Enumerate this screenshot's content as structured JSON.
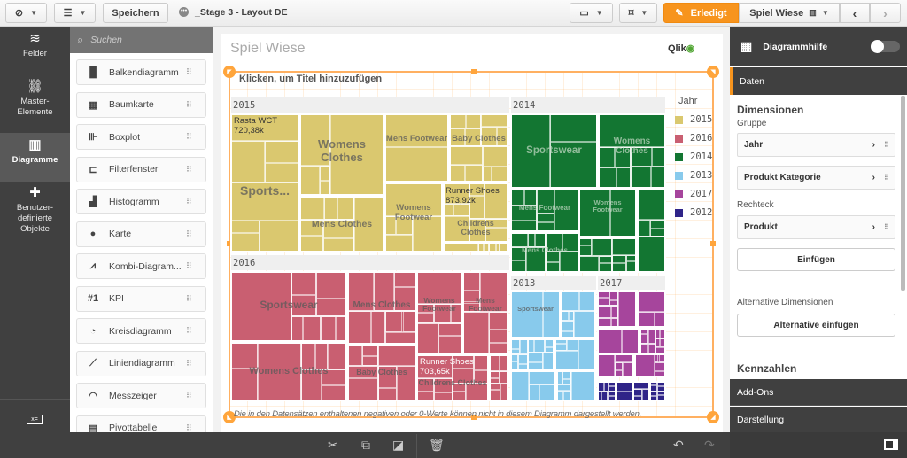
{
  "topbar": {
    "nav_icon": "compass-icon",
    "list_icon": "list-icon",
    "save_label": "Speichern",
    "app_title": "_Stage 3 - Layout DE",
    "present_icon": "presentation-icon",
    "bookmark_icon": "bookmark-icon",
    "done_label": "Erledigt",
    "sheet_label": "Spiel Wiese"
  },
  "leftnav": {
    "items": [
      {
        "label": "Felder",
        "icon": "database-icon"
      },
      {
        "label": "Master-\nElemente",
        "icon": "link-icon"
      },
      {
        "label": "Diagramme",
        "icon": "chart-icon",
        "selected": true
      },
      {
        "label": "Benutzer-\ndefinierte\nObjekte",
        "icon": "puzzle-icon"
      }
    ]
  },
  "chartlist": {
    "search_placeholder": "Suchen",
    "items": [
      {
        "label": "Balkendiagramm",
        "icon": "bar-chart-icon"
      },
      {
        "label": "Baumkarte",
        "icon": "treemap-icon"
      },
      {
        "label": "Boxplot",
        "icon": "boxplot-icon"
      },
      {
        "label": "Filterfenster",
        "icon": "filter-pane-icon"
      },
      {
        "label": "Histogramm",
        "icon": "histogram-icon"
      },
      {
        "label": "Karte",
        "icon": "globe-icon"
      },
      {
        "label": "Kombi-Diagram...",
        "icon": "combo-chart-icon"
      },
      {
        "label": "KPI",
        "icon": "kpi-icon"
      },
      {
        "label": "Kreisdiagramm",
        "icon": "pie-chart-icon"
      },
      {
        "label": "Liniendiagramm",
        "icon": "line-chart-icon"
      },
      {
        "label": "Messzeiger",
        "icon": "gauge-icon"
      },
      {
        "label": "Pivottabelle",
        "icon": "pivot-table-icon"
      }
    ]
  },
  "sheet": {
    "title": "Spiel Wiese",
    "logo": "Qlik",
    "chart_title_placeholder": "Klicken, um Titel hinzuzufügen",
    "footnote": "Die in den Datensätzen enthaltenen negativen oder 0-Werte können nicht in diesem Diagramm dargestellt werden."
  },
  "chart_data": {
    "type": "treemap",
    "legend_title": "Jahr",
    "legend_placement": "right",
    "legend": [
      {
        "label": "2015",
        "color": "#dac86f"
      },
      {
        "label": "2016",
        "color": "#c95f71"
      },
      {
        "label": "2014",
        "color": "#137632"
      },
      {
        "label": "2013",
        "color": "#88caec"
      },
      {
        "label": "2017",
        "color": "#a6459c"
      },
      {
        "label": "2012",
        "color": "#2f2488"
      }
    ],
    "groups": [
      {
        "year": "2015",
        "categories": [
          "Sports...",
          "Womens Clothes",
          "Mens Clothes",
          "Mens Footwear",
          "Baby Clothes",
          "Womens Footwear",
          "Childrens Clothes"
        ],
        "value_labels": [
          {
            "product": "Rasta WCT",
            "value": "720,38k"
          },
          {
            "product": "Runner Shoes",
            "value": "873,92k"
          }
        ]
      },
      {
        "year": "2014",
        "categories": [
          "Sportswear",
          "Womens Clothes",
          "Mens Footwear",
          "Womens Footwear",
          "Mens Clothes"
        ],
        "value_labels": []
      },
      {
        "year": "2016",
        "categories": [
          "Sportswear",
          "Womens Clothes",
          "Mens Clothes",
          "Baby Clothes",
          "Womens Footwear",
          "Mens Footwear",
          "Childrens Clothes"
        ],
        "value_labels": [
          {
            "product": "Runner Shoes",
            "value": "703,65k"
          }
        ]
      },
      {
        "year": "2013",
        "categories": [
          "Sportswear"
        ],
        "value_labels": []
      },
      {
        "year": "2017",
        "categories": [],
        "value_labels": []
      },
      {
        "year": "2012",
        "categories": [],
        "value_labels": []
      }
    ]
  },
  "rightpanel": {
    "header": "Diagrammhilfe",
    "toggle_on": false,
    "tab_data": "Daten",
    "dimensions_title": "Dimensionen",
    "group_label": "Gruppe",
    "group_fields": [
      "Jahr",
      "Produkt Kategorie"
    ],
    "rect_label": "Rechteck",
    "rect_fields": [
      "Produkt"
    ],
    "add_button": "Einfügen",
    "alt_dims_label": "Alternative Dimensionen",
    "alt_add_button": "Alternative einfügen",
    "measures_title": "Kennzahlen",
    "addons": "Add-Ons",
    "appearance": "Darstellung"
  },
  "bottombar": {
    "icons": [
      "scissors-icon",
      "copy-icon",
      "duplicate-icon",
      "trash-icon",
      "undo-icon",
      "redo-icon",
      "panel-toggle-icon"
    ]
  }
}
